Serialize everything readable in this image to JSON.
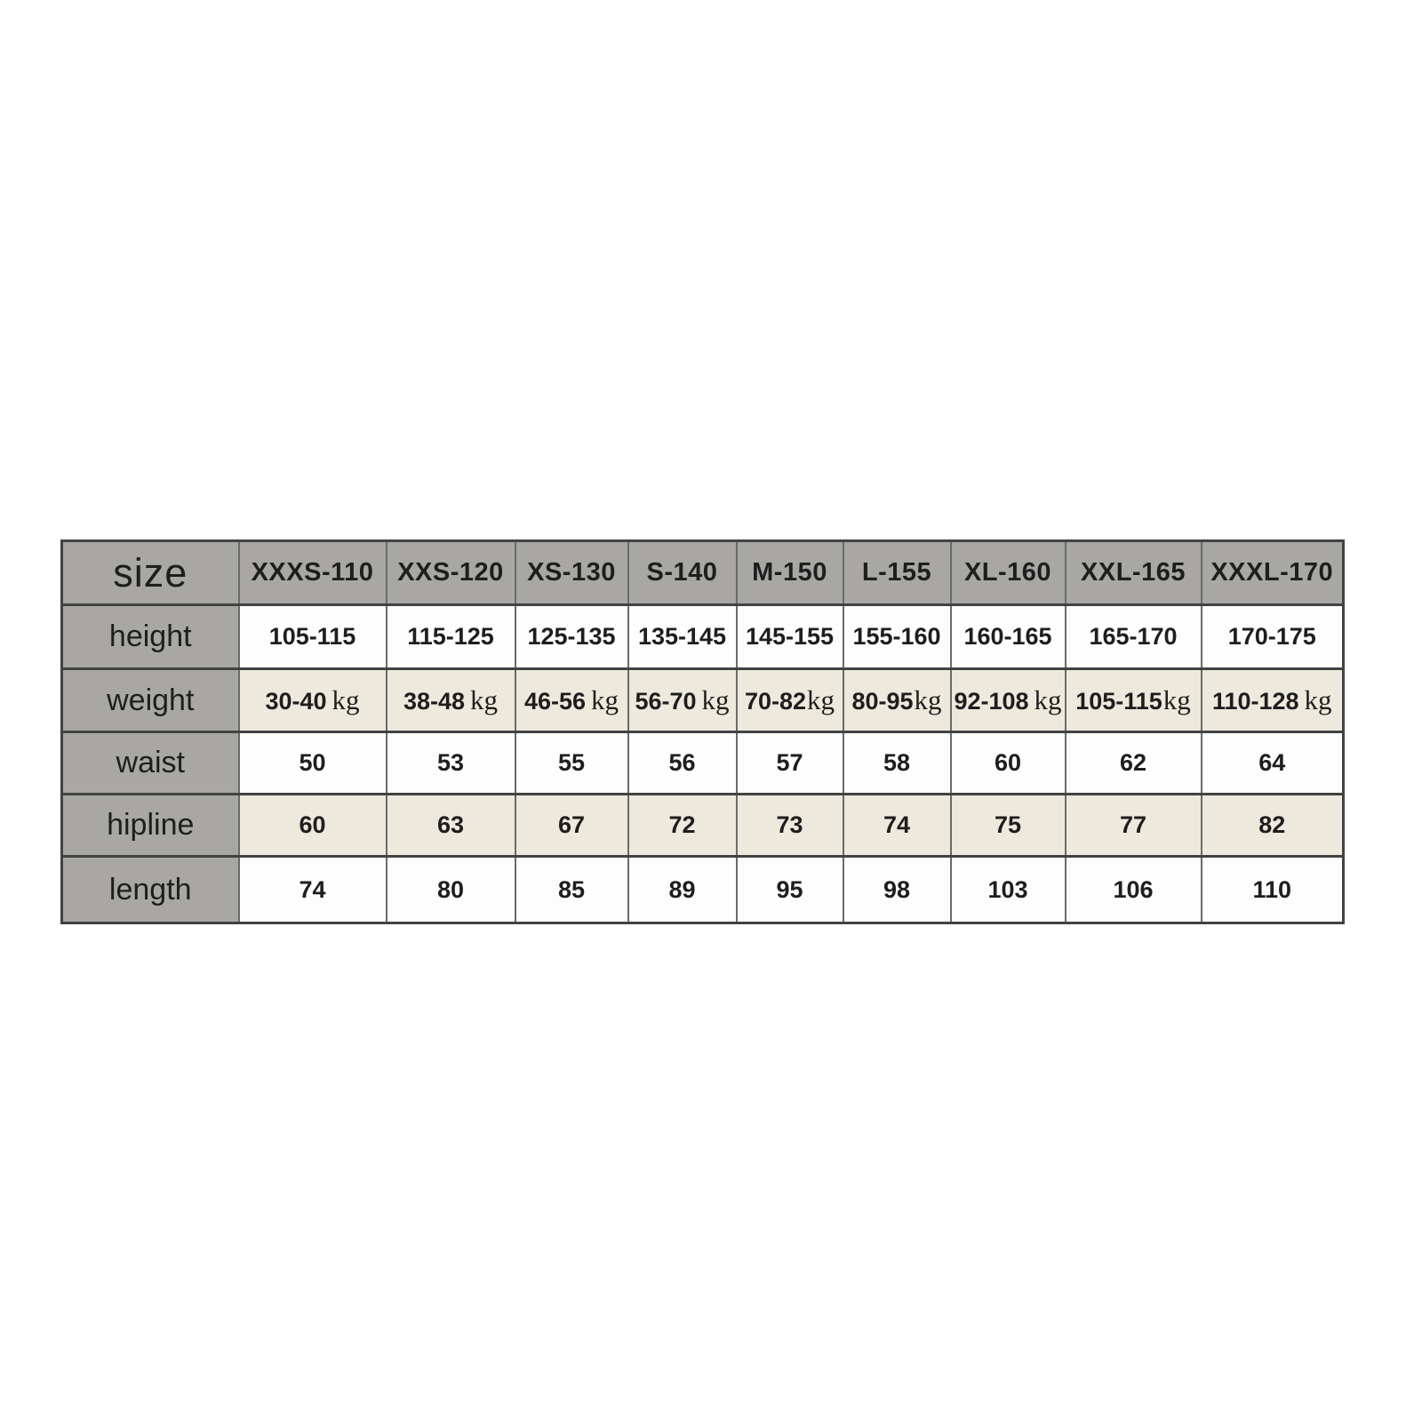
{
  "colors": {
    "header_bg": "#a8a7a4",
    "stripe_bg": "#edeadd",
    "border_dark": "#424242",
    "border_mid": "#6a6a6a",
    "text": "#1e1e1e"
  },
  "table": {
    "corner_label": "size",
    "columns": [
      "XXXS-110",
      "XXS-120",
      "XS-130",
      "S-140",
      "M-150",
      "L-155",
      "XL-160",
      "XXL-165",
      "XXXL-170"
    ],
    "rows": [
      {
        "label": "height",
        "values": [
          "105-115",
          "115-125",
          "125-135",
          "135-145",
          "145-155",
          "155-160",
          "160-165",
          "165-170",
          "170-175"
        ]
      },
      {
        "label": "weight",
        "values": [
          "30-40 kg",
          "38-48 kg",
          "46-56 kg",
          "56-70 kg",
          "70-82kg",
          "80-95kg",
          "92-108 kg",
          "105-115kg",
          "110-128 kg"
        ]
      },
      {
        "label": "waist",
        "values": [
          "50",
          "53",
          "55",
          "56",
          "57",
          "58",
          "60",
          "62",
          "64"
        ]
      },
      {
        "label": "hipline",
        "values": [
          "60",
          "63",
          "67",
          "72",
          "73",
          "74",
          "75",
          "77",
          "82"
        ]
      },
      {
        "label": "length",
        "values": [
          "74",
          "80",
          "85",
          "89",
          "95",
          "98",
          "103",
          "106",
          "110"
        ]
      }
    ]
  }
}
